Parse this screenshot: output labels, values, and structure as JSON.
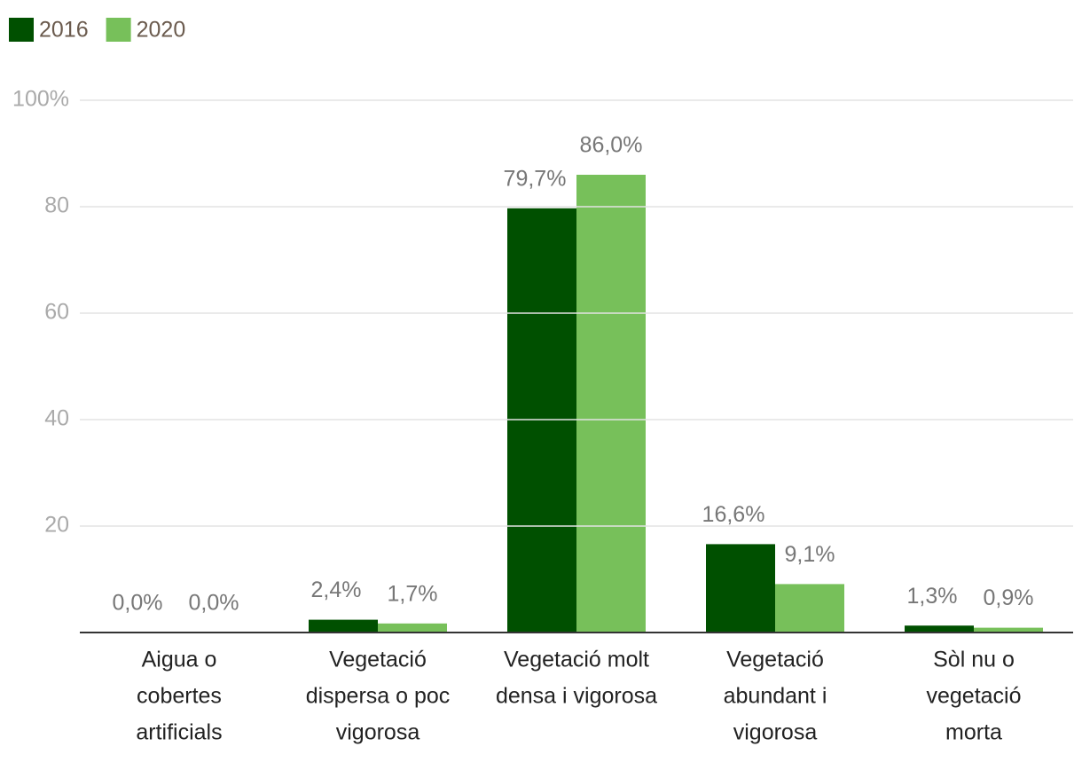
{
  "chart_data": {
    "type": "bar",
    "categories": [
      [
        "Aigua o",
        "cobertes",
        "artificials"
      ],
      [
        "Vegetació",
        "dispersa o poc",
        "vigorosa"
      ],
      [
        "Vegetació molt",
        "densa i vigorosa"
      ],
      [
        "Vegetació",
        "abundant i",
        "vigorosa"
      ],
      [
        "Sòl nu o",
        "vegetació",
        "morta"
      ]
    ],
    "series": [
      {
        "name": "2016",
        "color": "#005000",
        "values": [
          0,
          2.4,
          79.7,
          16.6,
          1.3
        ],
        "value_labels": [
          "0,0%",
          "2,4%",
          "79,7%",
          "16,6%",
          "1,3%"
        ]
      },
      {
        "name": "2020",
        "color": "#77c05a",
        "values": [
          0,
          1.7,
          86.0,
          9.1,
          0.9
        ],
        "value_labels": [
          "0,0%",
          "1,7%",
          "86,0%",
          "9,1%",
          "0,9%"
        ]
      }
    ],
    "ylim": [
      0,
      100
    ],
    "yticks": [
      20,
      40,
      60,
      {
        "value": 100,
        "label": "100%"
      },
      80
    ],
    "grid": true,
    "legend": "top-left"
  }
}
